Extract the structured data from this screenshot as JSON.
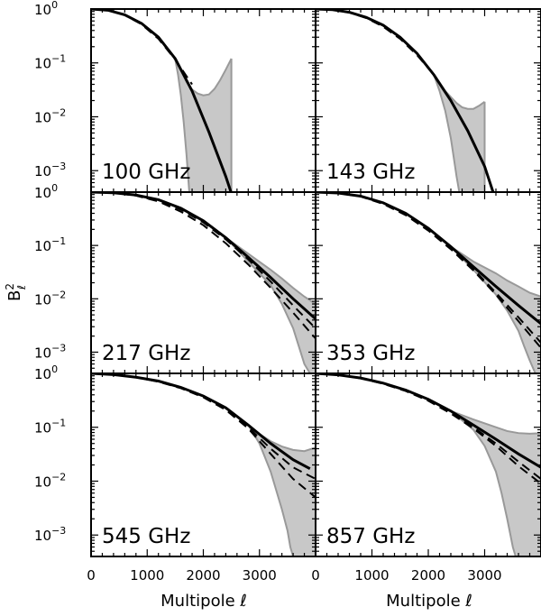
{
  "chart_data": {
    "type": "line",
    "xlabel": "Multipole ℓ",
    "ylabel": "B",
    "ylabel_sup": "2",
    "ylabel_sub": "ℓ",
    "xlim": [
      0,
      4000
    ],
    "ylim": [
      0.0004,
      1.0
    ],
    "yscale": "log",
    "xticks": [
      0,
      1000,
      2000,
      3000
    ],
    "xtick_labels": [
      "0",
      "1000",
      "2000",
      "3000"
    ],
    "ytick_exponents": [
      "0",
      "−1",
      "−2",
      "−3"
    ],
    "ytick_base": "10",
    "grid": false,
    "colors": {
      "line": "#000000",
      "band_fill": "#c8c8c8",
      "band_edge": "#999999"
    },
    "panels": [
      {
        "label": "100 GHz",
        "solid": {
          "x": [
            0,
            300,
            600,
            900,
            1200,
            1500,
            1800,
            2100,
            2400,
            2700
          ],
          "y": [
            1.0,
            0.95,
            0.78,
            0.54,
            0.3,
            0.12,
            0.03,
            0.0052,
            0.00078,
            9e-05
          ]
        },
        "dashed": {
          "x": [
            0,
            300,
            600,
            900,
            1200,
            1500,
            1800
          ],
          "y": [
            1.0,
            0.95,
            0.77,
            0.52,
            0.28,
            0.115,
            0.04
          ]
        },
        "band_upper": {
          "x": [
            1500,
            1600,
            1700,
            1800,
            1900,
            2000,
            2100,
            2200,
            2300,
            2400,
            2500
          ],
          "y": [
            0.115,
            0.075,
            0.045,
            0.032,
            0.027,
            0.025,
            0.026,
            0.033,
            0.048,
            0.075,
            0.12
          ]
        },
        "band_lower": {
          "x": [
            1500,
            1550,
            1600,
            1650,
            1700,
            1750
          ],
          "y": [
            0.115,
            0.06,
            0.025,
            0.008,
            0.002,
            0.0004
          ]
        },
        "band_cap": [
          1750,
          2500
        ]
      },
      {
        "label": "143 GHz",
        "solid": {
          "x": [
            0,
            300,
            600,
            900,
            1200,
            1500,
            1800,
            2100,
            2400,
            2700,
            3000,
            3150
          ],
          "y": [
            1.0,
            0.97,
            0.87,
            0.7,
            0.5,
            0.3,
            0.15,
            0.06,
            0.02,
            0.0055,
            0.0012,
            0.0004
          ]
        },
        "dashed": {
          "x": [
            0,
            300,
            600,
            900,
            1200,
            1500,
            1800,
            2100
          ],
          "y": [
            1.0,
            0.97,
            0.86,
            0.68,
            0.47,
            0.28,
            0.14,
            0.06
          ]
        },
        "band_upper": {
          "x": [
            2100,
            2300,
            2500,
            2600,
            2700,
            2800,
            2900,
            3000
          ],
          "y": [
            0.06,
            0.03,
            0.018,
            0.015,
            0.014,
            0.014,
            0.016,
            0.019
          ]
        },
        "band_lower": {
          "x": [
            2100,
            2200,
            2300,
            2400,
            2450,
            2500,
            2550
          ],
          "y": [
            0.06,
            0.03,
            0.013,
            0.004,
            0.0018,
            0.0008,
            0.0004
          ]
        },
        "band_cap": [
          2550,
          3000
        ]
      },
      {
        "label": "217 GHz",
        "solid": {
          "x": [
            0,
            400,
            800,
            1200,
            1600,
            2000,
            2400,
            2800,
            3200,
            3600,
            4000
          ],
          "y": [
            1.0,
            0.97,
            0.88,
            0.72,
            0.5,
            0.29,
            0.14,
            0.06,
            0.025,
            0.01,
            0.0042
          ]
        },
        "dashed": [
          {
            "x": [
              0,
              400,
              800,
              1200,
              1600,
              2000,
              2400,
              2800,
              3200,
              3600,
              4000
            ],
            "y": [
              1.0,
              0.97,
              0.87,
              0.7,
              0.47,
              0.27,
              0.13,
              0.055,
              0.021,
              0.0075,
              0.0028
            ]
          },
          {
            "x": [
              0,
              400,
              800,
              1200,
              1600,
              2000,
              2400,
              2800,
              3200,
              3600,
              4000
            ],
            "y": [
              1.0,
              0.97,
              0.86,
              0.67,
              0.43,
              0.24,
              0.11,
              0.044,
              0.016,
              0.0055,
              0.0018
            ]
          }
        ],
        "band_upper": {
          "x": [
            2400,
            2800,
            3200,
            3400,
            3600,
            3800,
            4000
          ],
          "y": [
            0.14,
            0.07,
            0.035,
            0.024,
            0.016,
            0.011,
            0.008
          ]
        },
        "band_lower": {
          "x": [
            2400,
            2800,
            3200,
            3400,
            3600,
            3700,
            3800,
            3900
          ],
          "y": [
            0.14,
            0.05,
            0.018,
            0.008,
            0.0028,
            0.0013,
            0.0006,
            0.0004
          ]
        }
      },
      {
        "label": "353 GHz",
        "solid": {
          "x": [
            0,
            400,
            800,
            1200,
            1600,
            2000,
            2400,
            2800,
            3200,
            3600,
            4000
          ],
          "y": [
            1.0,
            0.96,
            0.84,
            0.63,
            0.4,
            0.21,
            0.095,
            0.04,
            0.017,
            0.0075,
            0.0034
          ]
        },
        "dashed": [
          {
            "x": [
              0,
              400,
              800,
              1200,
              1600,
              2000,
              2400,
              2800,
              3200,
              3600,
              4000
            ],
            "y": [
              1.0,
              0.96,
              0.83,
              0.61,
              0.38,
              0.2,
              0.09,
              0.036,
              0.013,
              0.0045,
              0.0015
            ]
          },
          {
            "x": [
              0,
              400,
              800,
              1200,
              1600,
              2000,
              2400,
              2800,
              3200,
              3600,
              4000
            ],
            "y": [
              1.0,
              0.96,
              0.83,
              0.6,
              0.37,
              0.19,
              0.085,
              0.034,
              0.012,
              0.0038,
              0.0012
            ]
          }
        ],
        "band_upper": {
          "x": [
            2400,
            2800,
            3200,
            3400,
            3600,
            3800,
            4000
          ],
          "y": [
            0.095,
            0.05,
            0.03,
            0.022,
            0.017,
            0.013,
            0.011
          ]
        },
        "band_lower": {
          "x": [
            2400,
            2800,
            3200,
            3400,
            3600,
            3700,
            3800,
            3900
          ],
          "y": [
            0.095,
            0.035,
            0.012,
            0.006,
            0.0025,
            0.0013,
            0.0007,
            0.0004
          ]
        }
      },
      {
        "label": "545 GHz",
        "solid": {
          "x": [
            0,
            400,
            800,
            1200,
            1600,
            2000,
            2400,
            2800,
            3200,
            3600,
            3900
          ],
          "y": [
            1.0,
            0.95,
            0.85,
            0.72,
            0.55,
            0.38,
            0.23,
            0.11,
            0.05,
            0.025,
            0.017
          ]
        },
        "dashed": [
          {
            "x": [
              0,
              400,
              800,
              1200,
              1600,
              2000,
              2400,
              2800,
              3200,
              3600,
              4000
            ],
            "y": [
              1.0,
              0.95,
              0.85,
              0.71,
              0.54,
              0.37,
              0.22,
              0.1,
              0.04,
              0.018,
              0.011
            ]
          },
          {
            "x": [
              0,
              400,
              800,
              1200,
              1600,
              2000,
              2400,
              2800,
              3200,
              3600,
              4000
            ],
            "y": [
              1.0,
              0.95,
              0.85,
              0.7,
              0.53,
              0.36,
              0.21,
              0.095,
              0.032,
              0.011,
              0.005
            ]
          }
        ],
        "band_upper": {
          "x": [
            2800,
            3000,
            3200,
            3400,
            3600,
            3800,
            4000
          ],
          "y": [
            0.11,
            0.075,
            0.055,
            0.044,
            0.038,
            0.036,
            0.042
          ]
        },
        "band_lower": {
          "x": [
            2800,
            3000,
            3200,
            3400,
            3500,
            3550,
            3600
          ],
          "y": [
            0.11,
            0.05,
            0.015,
            0.003,
            0.0012,
            0.0006,
            0.0004
          ]
        }
      },
      {
        "label": "857 GHz",
        "solid": {
          "x": [
            0,
            400,
            800,
            1200,
            1600,
            2000,
            2400,
            2800,
            3200,
            3600,
            4000
          ],
          "y": [
            1.0,
            0.94,
            0.82,
            0.66,
            0.49,
            0.33,
            0.2,
            0.11,
            0.06,
            0.032,
            0.018
          ]
        },
        "dashed": [
          {
            "x": [
              0,
              400,
              800,
              1200,
              1600,
              2000,
              2400,
              2800,
              3200,
              3600,
              4000
            ],
            "y": [
              1.0,
              0.94,
              0.81,
              0.65,
              0.48,
              0.32,
              0.19,
              0.1,
              0.05,
              0.023,
              0.011
            ]
          },
          {
            "x": [
              0,
              400,
              800,
              1200,
              1600,
              2000,
              2400,
              2800,
              3200,
              3600,
              4000
            ],
            "y": [
              1.0,
              0.94,
              0.81,
              0.64,
              0.47,
              0.31,
              0.18,
              0.095,
              0.045,
              0.019,
              0.009
            ]
          }
        ],
        "band_upper": {
          "x": [
            2400,
            2800,
            3200,
            3400,
            3600,
            3800,
            4000
          ],
          "y": [
            0.2,
            0.14,
            0.1,
            0.085,
            0.078,
            0.076,
            0.078
          ]
        },
        "band_lower": {
          "x": [
            2400,
            2800,
            3000,
            3200,
            3300,
            3400,
            3450,
            3500,
            3550
          ],
          "y": [
            0.2,
            0.09,
            0.045,
            0.015,
            0.006,
            0.002,
            0.0011,
            0.0006,
            0.0004
          ]
        }
      }
    ]
  }
}
